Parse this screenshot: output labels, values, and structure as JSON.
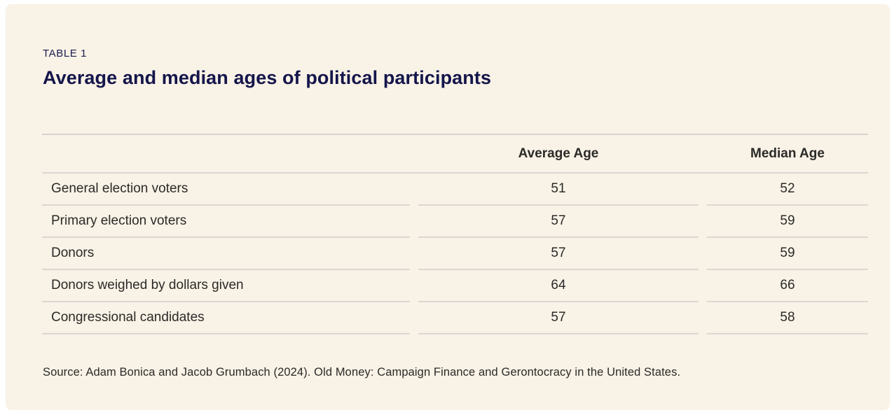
{
  "chart_data": {
    "type": "table",
    "eyebrow": "TABLE 1",
    "title": "Average and median ages of political participants",
    "columns": [
      "",
      "Average Age",
      "Median Age"
    ],
    "rows": [
      [
        "General election voters",
        51,
        52
      ],
      [
        "Primary election voters",
        57,
        59
      ],
      [
        "Donors",
        57,
        59
      ],
      [
        "Donors weighed by dollars given",
        64,
        66
      ],
      [
        "Congressional candidates",
        57,
        58
      ]
    ],
    "source": "Source: Adam Bonica and Jacob Grumbach (2024). Old Money: Campaign Finance and Gerontocracy in the United States.",
    "layout": {
      "grid": "horizontal-rules-only",
      "header_style": "bold",
      "value_alignment": "center"
    },
    "colors": {
      "card_background": "#f9f2e6",
      "page_background": "#ffffff",
      "heading_navy": "#14154b",
      "body_text": "#2b2a28",
      "rule_gray": "#dad8d3"
    }
  }
}
